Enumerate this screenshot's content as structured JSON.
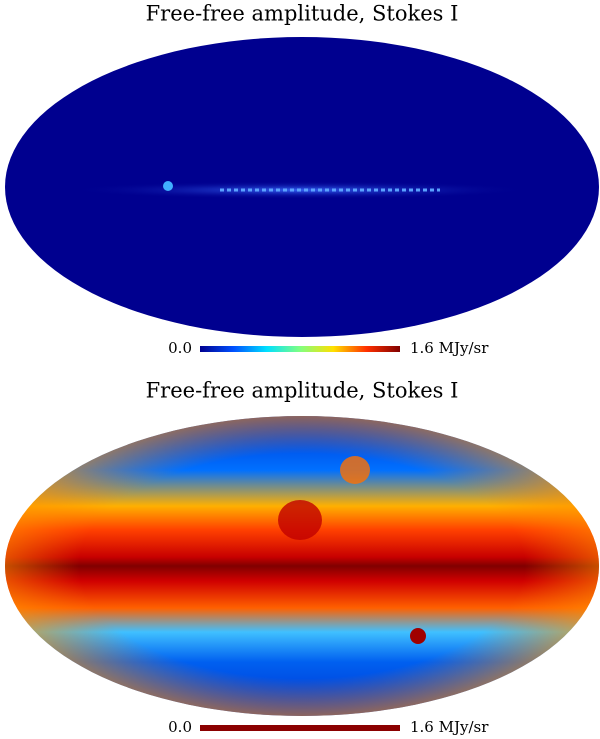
{
  "chart_data": [
    {
      "type": "map",
      "title": "Free-free amplitude, Stokes I",
      "clim": [
        0,
        1.6
      ],
      "ticks": [
        {
          "value": 0,
          "label": "0.0"
        },
        {
          "value": 1.6,
          "label": "1.6 MJy/sr"
        }
      ],
      "colorbar_colors": [
        "#00008f",
        "#0050ff",
        "#00e0ff",
        "#80ff80",
        "#ffe000",
        "#ff3000",
        "#800000"
      ]
    },
    {
      "type": "map",
      "title": "Free-free amplitude, Stokes I",
      "clim": [
        0,
        1.6
      ],
      "ticks": [
        {
          "value": 0,
          "label": "0.0"
        },
        {
          "value": 1.6,
          "label": "1.6 MJy/sr"
        }
      ],
      "colorbar_colors": [
        "#8b0000",
        "#8b0000"
      ]
    }
  ]
}
